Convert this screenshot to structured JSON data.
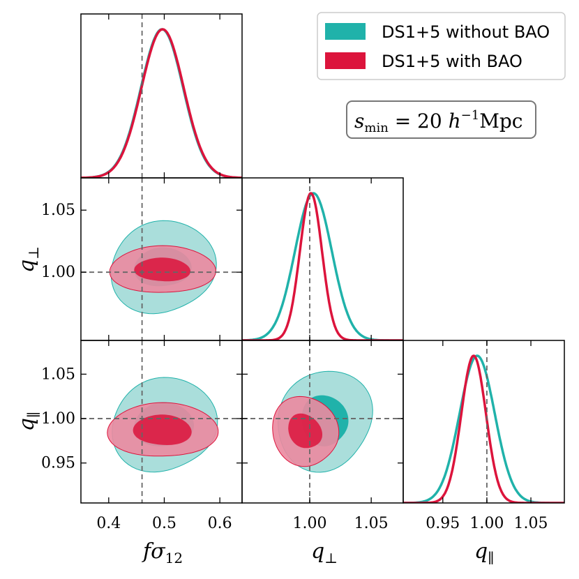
{
  "chart_data": {
    "type": "corner-plot",
    "parameters": [
      {
        "name": "fsigma12",
        "label": "fσ",
        "label_sub": "12",
        "range": [
          0.35,
          0.64
        ],
        "ticks": [
          0.4,
          0.5,
          0.6
        ],
        "tick_labels": [
          "0.4",
          "0.5",
          "0.6"
        ],
        "truth": 0.46
      },
      {
        "name": "q_perp",
        "label": "q",
        "label_sub": "⊥",
        "range": [
          0.945,
          1.076
        ],
        "ticks": [
          1.0,
          1.05
        ],
        "tick_labels": [
          "1.00",
          "1.05"
        ],
        "truth": 1.0
      },
      {
        "name": "q_par",
        "label": "q",
        "label_sub": "∥",
        "range": [
          0.905,
          1.088
        ],
        "ticks": [
          0.95,
          1.0,
          1.05
        ],
        "tick_labels": [
          "0.95",
          "1.00",
          "1.05"
        ],
        "truth": 1.0
      }
    ],
    "series": [
      {
        "name": "DS1+5 without BAO",
        "color": "#20b2aa",
        "light_color": "#a5dcd9",
        "marginals": [
          {
            "mean": 0.496,
            "sigma": 0.038
          },
          {
            "mean": 1.003,
            "sigma": 0.015
          },
          {
            "mean": 0.989,
            "sigma": 0.02
          }
        ],
        "contours": {
          "q_perp_vs_fsigma12": {
            "center": [
              0.497,
              1.004
            ],
            "inner": [
              0.049,
              0.0165
            ],
            "outer": [
              0.092,
              0.038
            ],
            "angle": 0.0
          },
          "q_par_vs_fsigma12": {
            "center": [
              0.499,
              0.993
            ],
            "inner": [
              0.051,
              0.026
            ],
            "outer": [
              0.092,
              0.054
            ],
            "angle": 0.0
          },
          "q_par_vs_q_perp": {
            "center": [
              1.012,
              0.998
            ],
            "inner": [
              0.018,
              0.03
            ],
            "outer": [
              0.04,
              0.054
            ],
            "angle": 0.55
          }
        }
      },
      {
        "name": "DS1+5 with BAO",
        "color": "#dc143c",
        "light_color": "#eb8aa0",
        "marginals": [
          {
            "mean": 0.497,
            "sigma": 0.038
          },
          {
            "mean": 1.001,
            "sigma": 0.009
          },
          {
            "mean": 0.985,
            "sigma": 0.014
          }
        ],
        "contours": {
          "q_perp_vs_fsigma12": {
            "center": [
              0.497,
              1.002
            ],
            "inner": [
              0.048,
              0.01
            ],
            "outer": [
              0.09,
              0.02
            ],
            "angle": 0.0
          },
          "q_par_vs_fsigma12": {
            "center": [
              0.497,
              0.987
            ],
            "inner": [
              0.05,
              0.018
            ],
            "outer": [
              0.094,
              0.032
            ],
            "angle": 0.0
          },
          "q_par_vs_q_perp": {
            "center": [
              0.996,
              0.986
            ],
            "inner": [
              0.012,
              0.022
            ],
            "outer": [
              0.025,
              0.042
            ],
            "angle": 0.6
          }
        }
      }
    ],
    "legend": {
      "placement": "top-right",
      "entries": [
        "DS1+5 without BAO",
        "DS1+5 with BAO"
      ]
    },
    "annotation": {
      "prefix": "s",
      "sub": "min",
      "value": " = 20 ",
      "unit_h": "h",
      "unit_exp": "−1",
      "unit_rest": "Mpc"
    }
  }
}
